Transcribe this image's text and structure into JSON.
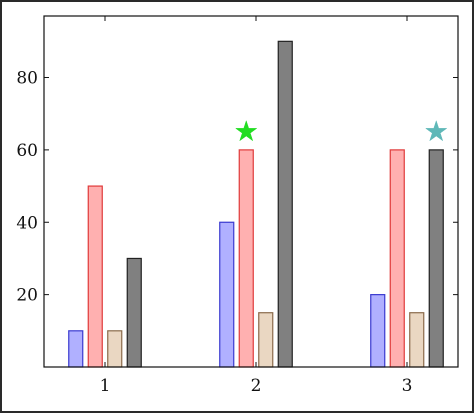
{
  "chart_data": {
    "type": "bar",
    "categories": [
      "1",
      "2",
      "3"
    ],
    "series": [
      {
        "values": [
          10,
          40,
          20
        ],
        "color": "#b0b0ff",
        "stroke": "#3a3ad0"
      },
      {
        "values": [
          50,
          60,
          60
        ],
        "color": "#ffb0b0",
        "stroke": "#e03a3a"
      },
      {
        "values": [
          10,
          15,
          15
        ],
        "color": "#ead7c2",
        "stroke": "#8a6a4a"
      },
      {
        "values": [
          30,
          90,
          60
        ],
        "color": "#808080",
        "stroke": "#222222"
      }
    ],
    "yticks": [
      20,
      40,
      60,
      80
    ],
    "ylim": [
      0,
      97
    ],
    "grid": false,
    "annotations": [
      {
        "type": "star",
        "category": "2",
        "series_index": 1,
        "y": 65,
        "color": "#22dd22"
      },
      {
        "type": "star",
        "category": "3",
        "series_index": 3,
        "y": 65,
        "color": "#5fb8b8"
      }
    ]
  }
}
